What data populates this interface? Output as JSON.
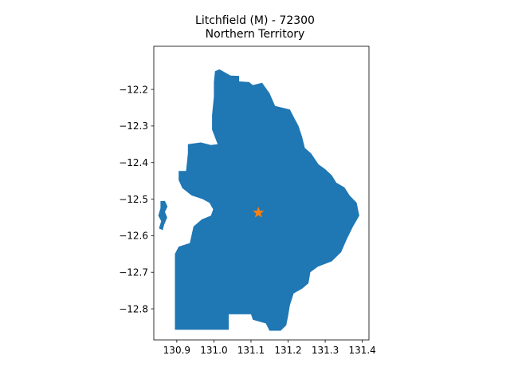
{
  "title": {
    "line1": "Litchfield (M) - 72300",
    "line2": "Northern Territory"
  },
  "colors": {
    "region_fill": "#1f77b4",
    "marker": "#ff7f0e",
    "axes": "#000000",
    "background": "#ffffff"
  },
  "chart_data": {
    "type": "map",
    "title": "Litchfield (M) - 72300\nNorthern Territory",
    "xlabel": "",
    "ylabel": "",
    "xlim": [
      130.838,
      131.418
    ],
    "ylim": [
      -12.885,
      -12.082
    ],
    "xticks": [
      130.9,
      131.0,
      131.1,
      131.2,
      131.3,
      131.4
    ],
    "xtick_labels": [
      "130.9",
      "131.0",
      "131.1",
      "131.2",
      "131.3",
      "131.4"
    ],
    "yticks": [
      -12.2,
      -12.3,
      -12.4,
      -12.5,
      -12.6,
      -12.7,
      -12.8
    ],
    "ytick_labels": [
      "−12.2",
      "−12.3",
      "−12.4",
      "−12.5",
      "−12.6",
      "−12.7",
      "−12.8"
    ],
    "grid": false,
    "legend": "none",
    "marker": {
      "symbol": "star",
      "lon": 131.12,
      "lat": -12.537
    },
    "region_polygon": [
      [
        131.003,
        -12.15
      ],
      [
        131.015,
        -12.145
      ],
      [
        131.045,
        -12.162
      ],
      [
        131.068,
        -12.163
      ],
      [
        131.068,
        -12.178
      ],
      [
        131.095,
        -12.18
      ],
      [
        131.105,
        -12.188
      ],
      [
        131.13,
        -12.182
      ],
      [
        131.15,
        -12.21
      ],
      [
        131.165,
        -12.245
      ],
      [
        131.185,
        -12.25
      ],
      [
        131.205,
        -12.255
      ],
      [
        131.215,
        -12.275
      ],
      [
        131.228,
        -12.3
      ],
      [
        131.238,
        -12.33
      ],
      [
        131.245,
        -12.36
      ],
      [
        131.262,
        -12.375
      ],
      [
        131.282,
        -12.405
      ],
      [
        131.3,
        -12.418
      ],
      [
        131.318,
        -12.435
      ],
      [
        131.33,
        -12.455
      ],
      [
        131.352,
        -12.468
      ],
      [
        131.366,
        -12.49
      ],
      [
        131.385,
        -12.51
      ],
      [
        131.392,
        -12.545
      ],
      [
        131.375,
        -12.575
      ],
      [
        131.358,
        -12.61
      ],
      [
        131.343,
        -12.645
      ],
      [
        131.318,
        -12.67
      ],
      [
        131.28,
        -12.685
      ],
      [
        131.26,
        -12.7
      ],
      [
        131.255,
        -12.73
      ],
      [
        131.238,
        -12.745
      ],
      [
        131.215,
        -12.758
      ],
      [
        131.205,
        -12.79
      ],
      [
        131.2,
        -12.82
      ],
      [
        131.195,
        -12.845
      ],
      [
        131.18,
        -12.86
      ],
      [
        131.15,
        -12.86
      ],
      [
        131.14,
        -12.84
      ],
      [
        131.105,
        -12.83
      ],
      [
        131.1,
        -12.815
      ],
      [
        131.04,
        -12.815
      ],
      [
        131.04,
        -12.857
      ],
      [
        130.895,
        -12.857
      ],
      [
        130.895,
        -12.65
      ],
      [
        130.905,
        -12.63
      ],
      [
        130.935,
        -12.62
      ],
      [
        130.945,
        -12.575
      ],
      [
        130.968,
        -12.555
      ],
      [
        130.992,
        -12.545
      ],
      [
        130.998,
        -12.528
      ],
      [
        130.988,
        -12.51
      ],
      [
        130.97,
        -12.5
      ],
      [
        130.955,
        -12.495
      ],
      [
        130.94,
        -12.49
      ],
      [
        130.915,
        -12.47
      ],
      [
        130.905,
        -12.448
      ],
      [
        130.905,
        -12.423
      ],
      [
        130.925,
        -12.423
      ],
      [
        130.93,
        -12.375
      ],
      [
        130.93,
        -12.35
      ],
      [
        130.965,
        -12.345
      ],
      [
        130.992,
        -12.352
      ],
      [
        131.01,
        -12.35
      ],
      [
        130.995,
        -12.31
      ],
      [
        130.995,
        -12.27
      ],
      [
        131.0,
        -12.22
      ],
      [
        131.0,
        -12.18
      ]
    ],
    "island_polygon": [
      [
        130.856,
        -12.505
      ],
      [
        130.868,
        -12.505
      ],
      [
        130.875,
        -12.52
      ],
      [
        130.868,
        -12.535
      ],
      [
        130.874,
        -12.55
      ],
      [
        130.866,
        -12.57
      ],
      [
        130.862,
        -12.585
      ],
      [
        130.852,
        -12.58
      ],
      [
        130.858,
        -12.56
      ],
      [
        130.85,
        -12.545
      ],
      [
        130.856,
        -12.525
      ]
    ]
  }
}
